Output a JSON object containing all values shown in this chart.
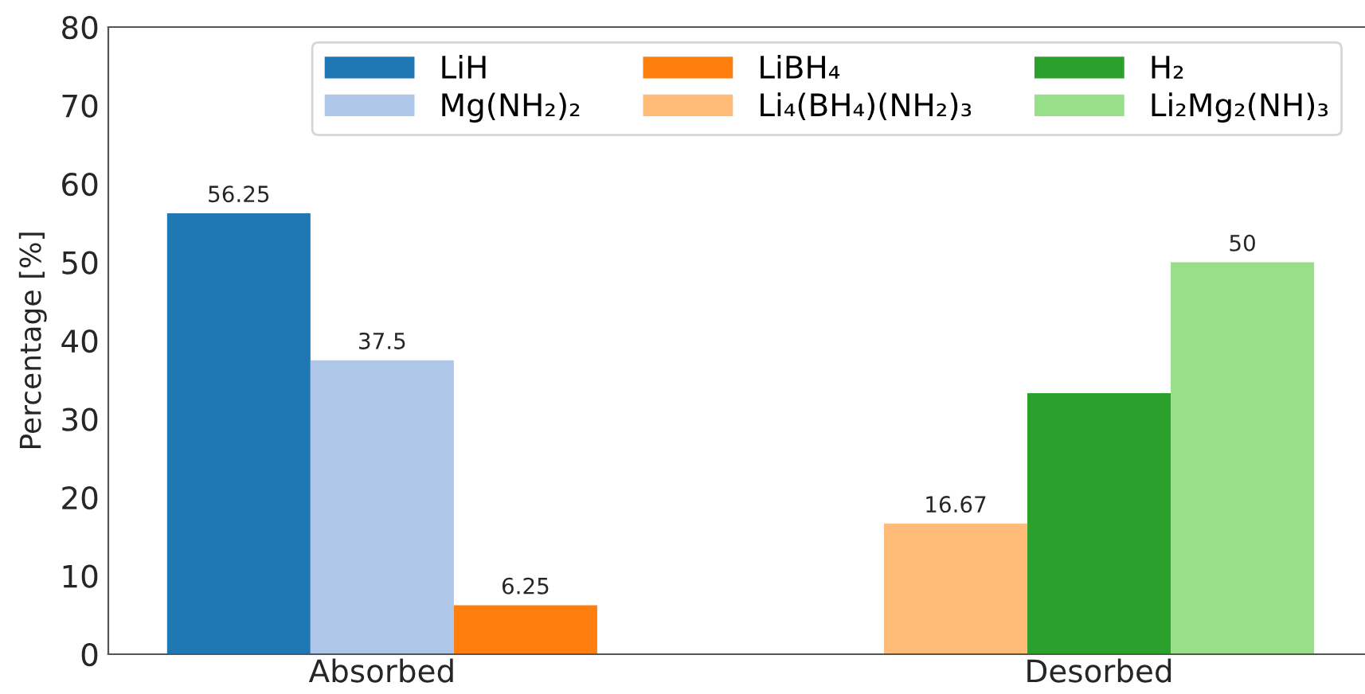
{
  "chart_data": {
    "type": "bar",
    "ylabel": "Percentage [%]",
    "categories": [
      "Absorbed",
      "Desorbed"
    ],
    "series": [
      {
        "name": "LiH",
        "color": "#1f77b4",
        "values": [
          56.25,
          null
        ],
        "value_labels": [
          "56.25",
          null
        ]
      },
      {
        "name": "Mg(NH₂)₂",
        "color": "#aec7e8",
        "values": [
          37.5,
          null
        ],
        "value_labels": [
          "37.5",
          null
        ]
      },
      {
        "name": "LiBH₄",
        "color": "#ff7f0e",
        "values": [
          6.25,
          null
        ],
        "value_labels": [
          "6.25",
          null
        ]
      },
      {
        "name": "Li₄(BH₄)(NH₂)₃",
        "color": "#ffbb78",
        "values": [
          null,
          16.67
        ],
        "value_labels": [
          null,
          "16.67"
        ]
      },
      {
        "name": "H₂",
        "color": "#2ca02c",
        "values": [
          null,
          33.3
        ],
        "value_labels": [
          null,
          null
        ]
      },
      {
        "name": "Li₂Mg₂(NH)₃",
        "color": "#98df8a",
        "values": [
          null,
          50
        ],
        "value_labels": [
          null,
          "50"
        ]
      }
    ],
    "ylim": [
      0,
      80
    ],
    "yticks": [
      0,
      10,
      20,
      30,
      40,
      50,
      60,
      70,
      80
    ],
    "legend": "top right"
  }
}
